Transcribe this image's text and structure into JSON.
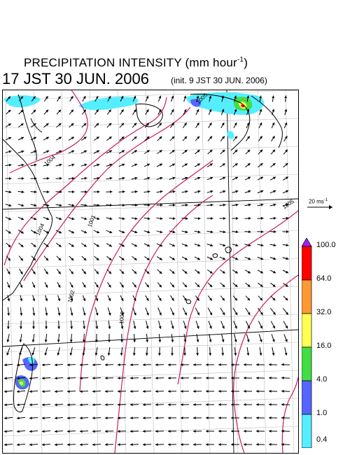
{
  "header": {
    "title": "PRECIPITATION INTENSITY (mm hour",
    "title_sup": "-1",
    "title_tail": ")",
    "valid_time": "17 JST 30 JUN. 2006",
    "init_time": "(init. 9 JST 30 JUN. 2006)"
  },
  "wind_reference": {
    "label": "20 ms",
    "label_sup": "-1"
  },
  "legend": {
    "levels": [
      "100.0",
      "64.0",
      "32.0",
      "16.0",
      "4.0",
      "1.0",
      "0.4"
    ],
    "colors": [
      "#a020f0",
      "#ff0000",
      "#ff9933",
      "#ffff55",
      "#44dd44",
      "#5566ff",
      "#55eeff"
    ]
  },
  "map": {
    "isobar_labels": [
      "1004",
      "1001",
      "1002",
      "1000",
      "1005",
      "1004",
      "1005"
    ],
    "colors": {
      "coast": "#000000",
      "grid": "#bdbdbd",
      "isobar": "#cc1a66",
      "arrow": "#000000"
    }
  }
}
